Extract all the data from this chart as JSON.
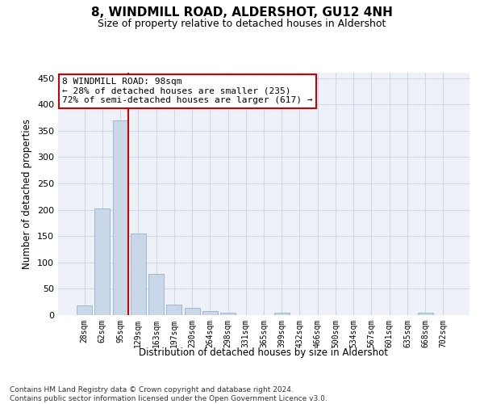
{
  "title1": "8, WINDMILL ROAD, ALDERSHOT, GU12 4NH",
  "title2": "Size of property relative to detached houses in Aldershot",
  "xlabel": "Distribution of detached houses by size in Aldershot",
  "ylabel": "Number of detached properties",
  "footnote": "Contains HM Land Registry data © Crown copyright and database right 2024.\nContains public sector information licensed under the Open Government Licence v3.0.",
  "categories": [
    "28sqm",
    "62sqm",
    "95sqm",
    "129sqm",
    "163sqm",
    "197sqm",
    "230sqm",
    "264sqm",
    "298sqm",
    "331sqm",
    "365sqm",
    "399sqm",
    "432sqm",
    "466sqm",
    "500sqm",
    "534sqm",
    "567sqm",
    "601sqm",
    "635sqm",
    "668sqm",
    "702sqm"
  ],
  "values": [
    18,
    202,
    369,
    155,
    78,
    20,
    14,
    7,
    5,
    0,
    0,
    4,
    0,
    0,
    0,
    0,
    0,
    0,
    0,
    4,
    0
  ],
  "bar_color": "#c8d8e8",
  "bar_edgecolor": "#a0b8d0",
  "grid_color": "#d0d8e8",
  "background_color": "#eef2f8",
  "annotation_text": "8 WINDMILL ROAD: 98sqm\n← 28% of detached houses are smaller (235)\n72% of semi-detached houses are larger (617) →",
  "annotation_box_color": "#ffffff",
  "annotation_border_color": "#cc0000",
  "property_line_color": "#cc0000",
  "ylim": [
    0,
    460
  ],
  "yticks": [
    0,
    50,
    100,
    150,
    200,
    250,
    300,
    350,
    400,
    450
  ],
  "title1_fontsize": 11,
  "title2_fontsize": 9,
  "footnote_fontsize": 6.5
}
